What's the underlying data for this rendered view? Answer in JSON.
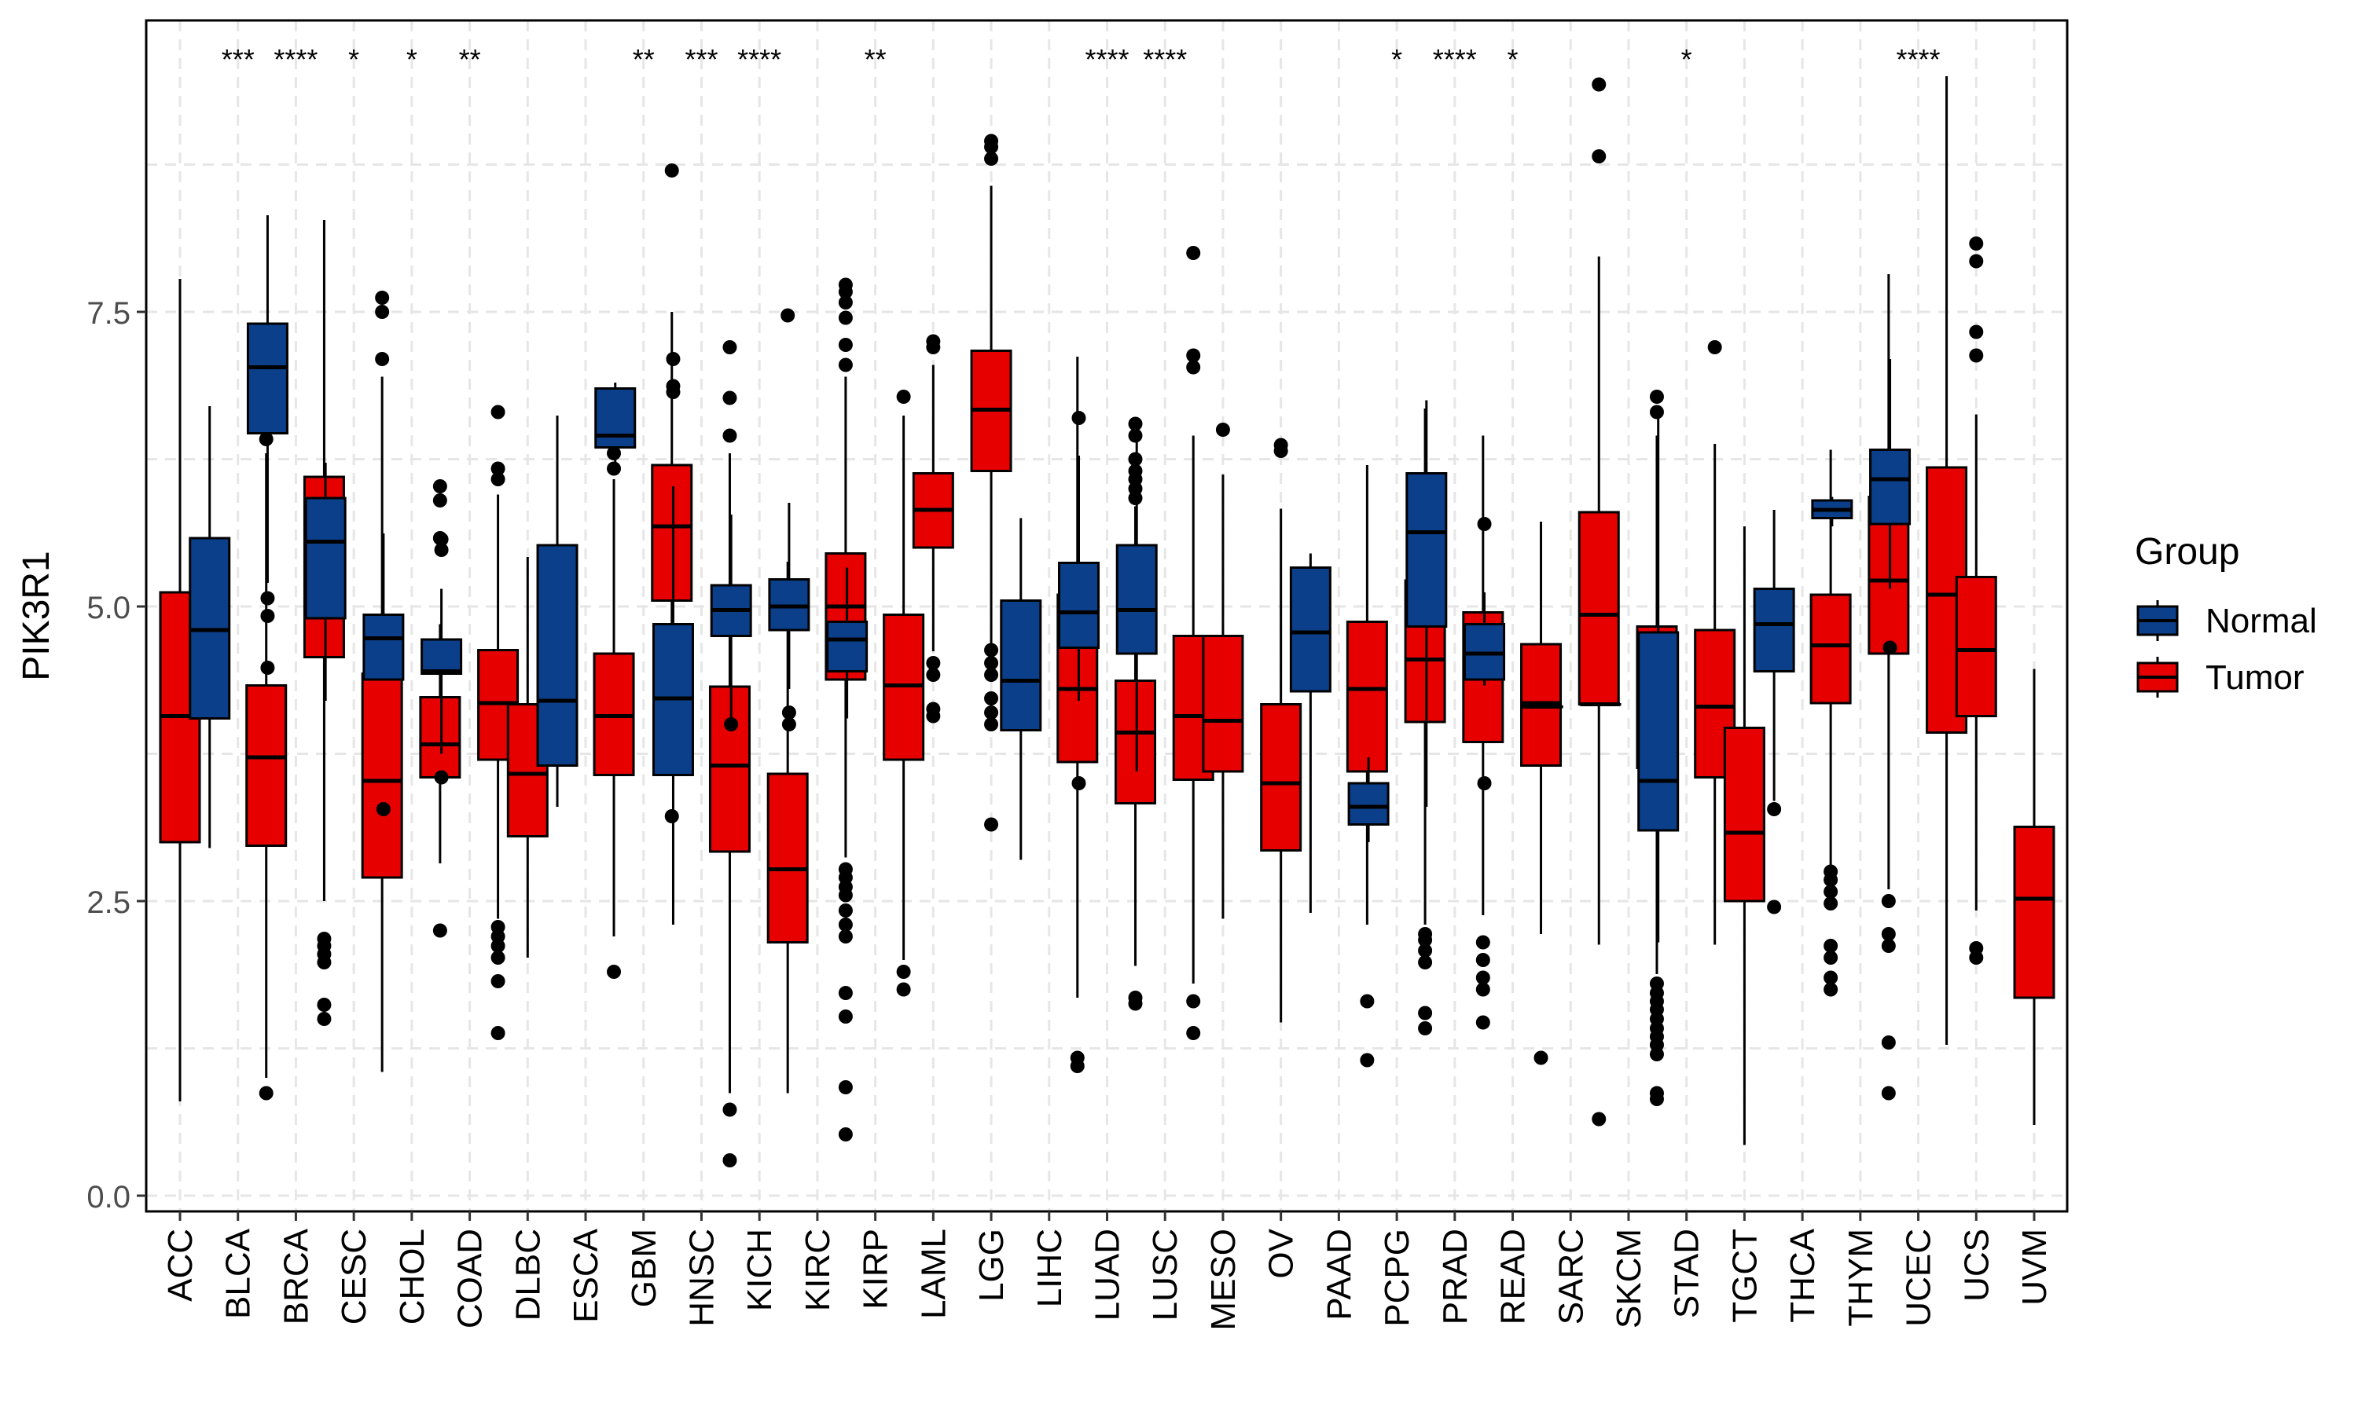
{
  "chart_data": {
    "type": "box",
    "xlabel": "",
    "ylabel": "PIK3R1",
    "ylim": [
      -0.2,
      10.0
    ],
    "yticks": [
      0.0,
      2.5,
      5.0,
      7.5
    ],
    "ytick_labels": [
      "0.0",
      "2.5",
      "5.0",
      "7.5"
    ],
    "grid": true,
    "legend": {
      "title": "Group",
      "placement": "right",
      "entries": [
        {
          "name": "Normal",
          "color": "#0b3f8a"
        },
        {
          "name": "Tumor",
          "color": "#e60000"
        }
      ]
    },
    "colors": {
      "Normal": "#0b3f8a",
      "Tumor": "#e60000"
    },
    "categories": [
      "ACC",
      "BLCA",
      "BRCA",
      "CESC",
      "CHOL",
      "COAD",
      "DLBC",
      "ESCA",
      "GBM",
      "HNSC",
      "KICH",
      "KIRC",
      "KIRP",
      "LAML",
      "LGG",
      "LIHC",
      "LUAD",
      "LUSC",
      "MESO",
      "OV",
      "PAAD",
      "PCPG",
      "PRAD",
      "READ",
      "SARC",
      "SKCM",
      "STAD",
      "TGCT",
      "THCA",
      "THYM",
      "UCEC",
      "UCS",
      "UVM"
    ],
    "significance": [
      "",
      "***",
      "****",
      "*",
      "*",
      "**",
      "",
      "",
      "**",
      "***",
      "****",
      "",
      "**",
      "",
      "",
      "",
      "****",
      "****",
      "",
      "",
      "",
      "*",
      "****",
      "*",
      "",
      "",
      "*",
      "",
      "",
      "",
      "****",
      "",
      ""
    ],
    "boxes": [
      {
        "category": "ACC",
        "group": "Tumor",
        "whisker_low": 0.8,
        "q1": 3.0,
        "median": 4.07,
        "q3": 5.12,
        "whisker_high": 7.78,
        "outliers": []
      },
      {
        "category": "BLCA",
        "group": "Normal",
        "whisker_low": 2.95,
        "q1": 4.05,
        "median": 4.8,
        "q3": 5.58,
        "whisker_high": 6.7,
        "outliers": []
      },
      {
        "category": "BLCA",
        "group": "Tumor",
        "whisker_low": 1.0,
        "q1": 2.97,
        "median": 3.72,
        "q3": 4.33,
        "whisker_high": 6.3,
        "outliers": [
          0.87,
          6.42,
          6.5,
          6.62,
          6.8,
          6.95
        ]
      },
      {
        "category": "BRCA",
        "group": "Normal",
        "whisker_low": 5.2,
        "q1": 6.47,
        "median": 7.03,
        "q3": 7.4,
        "whisker_high": 8.32,
        "outliers": [
          4.48,
          4.92,
          5.07
        ]
      },
      {
        "category": "BRCA",
        "group": "Tumor",
        "whisker_low": 2.5,
        "q1": 4.57,
        "median": 5.37,
        "q3": 6.1,
        "whisker_high": 8.28,
        "outliers": [
          1.5,
          1.62,
          1.98,
          2.05,
          2.12,
          2.18
        ]
      },
      {
        "category": "CESC",
        "group": "Normal",
        "whisker_low": 4.2,
        "q1": 4.9,
        "median": 5.55,
        "q3": 5.92,
        "whisker_high": 6.22,
        "outliers": []
      },
      {
        "category": "CESC",
        "group": "Tumor",
        "whisker_low": 1.05,
        "q1": 2.7,
        "median": 3.52,
        "q3": 4.43,
        "whisker_high": 6.95,
        "outliers": [
          7.1,
          7.5,
          7.62
        ]
      },
      {
        "category": "CHOL",
        "group": "Normal",
        "whisker_low": 4.38,
        "q1": 4.38,
        "median": 4.73,
        "q3": 4.93,
        "whisker_high": 5.62,
        "outliers": [
          3.28
        ]
      },
      {
        "category": "CHOL",
        "group": "Tumor",
        "whisker_low": 2.82,
        "q1": 3.55,
        "median": 3.83,
        "q3": 4.23,
        "whisker_high": 4.85,
        "outliers": [
          2.25,
          5.58,
          5.9,
          6.02
        ]
      },
      {
        "category": "COAD",
        "group": "Normal",
        "whisker_low": 3.75,
        "q1": 4.43,
        "median": 4.45,
        "q3": 4.72,
        "whisker_high": 5.15,
        "outliers": [
          3.55,
          5.48,
          5.57
        ]
      },
      {
        "category": "COAD",
        "group": "Tumor",
        "whisker_low": 2.35,
        "q1": 3.7,
        "median": 4.18,
        "q3": 4.63,
        "whisker_high": 5.95,
        "outliers": [
          1.38,
          1.82,
          2.02,
          2.12,
          2.2,
          2.28,
          6.08,
          6.17,
          6.65
        ]
      },
      {
        "category": "DLBC",
        "group": "Tumor",
        "whisker_low": 2.02,
        "q1": 3.05,
        "median": 3.58,
        "q3": 4.17,
        "whisker_high": 5.42,
        "outliers": []
      },
      {
        "category": "ESCA",
        "group": "Normal",
        "whisker_low": 3.3,
        "q1": 3.65,
        "median": 4.2,
        "q3": 5.52,
        "whisker_high": 6.62,
        "outliers": []
      },
      {
        "category": "ESCA",
        "group": "Tumor",
        "whisker_low": 2.2,
        "q1": 3.57,
        "median": 4.07,
        "q3": 4.6,
        "whisker_high": 6.08,
        "outliers": [
          1.9,
          6.17,
          6.3,
          6.55,
          6.65
        ]
      },
      {
        "category": "GBM",
        "group": "Normal",
        "whisker_low": 6.2,
        "q1": 6.35,
        "median": 6.45,
        "q3": 6.85,
        "whisker_high": 6.9,
        "outliers": []
      },
      {
        "category": "GBM",
        "group": "Tumor",
        "whisker_low": 3.7,
        "q1": 5.05,
        "median": 5.68,
        "q3": 6.2,
        "whisker_high": 7.5,
        "outliers": [
          3.22,
          8.7
        ]
      },
      {
        "category": "HNSC",
        "group": "Normal",
        "whisker_low": 2.3,
        "q1": 3.57,
        "median": 4.22,
        "q3": 4.85,
        "whisker_high": 6.02,
        "outliers": [
          6.82,
          6.87,
          7.1
        ]
      },
      {
        "category": "HNSC",
        "group": "Tumor",
        "whisker_low": 0.87,
        "q1": 2.92,
        "median": 3.65,
        "q3": 4.32,
        "whisker_high": 6.3,
        "outliers": [
          0.3,
          0.73,
          6.45,
          6.77,
          7.2
        ]
      },
      {
        "category": "KICH",
        "group": "Normal",
        "whisker_low": 4.0,
        "q1": 4.75,
        "median": 4.97,
        "q3": 5.18,
        "whisker_high": 5.78,
        "outliers": [
          4.0
        ]
      },
      {
        "category": "KICH",
        "group": "Tumor",
        "whisker_low": 0.87,
        "q1": 2.15,
        "median": 2.77,
        "q3": 3.58,
        "whisker_high": 5.38,
        "outliers": [
          7.47
        ]
      },
      {
        "category": "KIRC",
        "group": "Normal",
        "whisker_low": 4.3,
        "q1": 4.8,
        "median": 5.0,
        "q3": 5.23,
        "whisker_high": 5.88,
        "outliers": [
          4.0,
          4.1
        ]
      },
      {
        "category": "KIRC",
        "group": "Tumor",
        "whisker_low": 2.87,
        "q1": 4.38,
        "median": 5.0,
        "q3": 5.45,
        "whisker_high": 6.95,
        "outliers": [
          0.52,
          0.92,
          1.52,
          1.72,
          2.2,
          2.3,
          2.42,
          2.55,
          2.62,
          2.7,
          2.77,
          7.05,
          7.22,
          7.45,
          7.58,
          7.67,
          7.73
        ]
      },
      {
        "category": "KIRP",
        "group": "Normal",
        "whisker_low": 4.05,
        "q1": 4.45,
        "median": 4.72,
        "q3": 4.87,
        "whisker_high": 5.33,
        "outliers": []
      },
      {
        "category": "KIRP",
        "group": "Tumor",
        "whisker_low": 2.0,
        "q1": 3.7,
        "median": 4.33,
        "q3": 4.93,
        "whisker_high": 6.62,
        "outliers": [
          1.75,
          1.9,
          6.78
        ]
      },
      {
        "category": "LAML",
        "group": "Tumor",
        "whisker_low": 4.62,
        "q1": 5.5,
        "median": 5.82,
        "q3": 6.13,
        "whisker_high": 7.05,
        "outliers": [
          4.07,
          4.13,
          4.42,
          4.52,
          7.2,
          7.25
        ]
      },
      {
        "category": "LGG",
        "group": "Tumor",
        "whisker_low": 4.68,
        "q1": 6.15,
        "median": 6.67,
        "q3": 7.17,
        "whisker_high": 8.57,
        "outliers": [
          3.15,
          4.0,
          4.1,
          4.22,
          4.42,
          4.52,
          4.63,
          8.8,
          8.9,
          8.95
        ]
      },
      {
        "category": "LIHC",
        "group": "Normal",
        "whisker_low": 2.85,
        "q1": 3.95,
        "median": 4.37,
        "q3": 5.05,
        "whisker_high": 5.75,
        "outliers": []
      },
      {
        "category": "LIHC",
        "group": "Tumor",
        "whisker_low": 1.68,
        "q1": 3.68,
        "median": 4.3,
        "q3": 5.1,
        "whisker_high": 7.12,
        "outliers": [
          1.1,
          1.17
        ]
      },
      {
        "category": "LUAD",
        "group": "Normal",
        "whisker_low": 4.2,
        "q1": 4.65,
        "median": 4.95,
        "q3": 5.37,
        "whisker_high": 6.28,
        "outliers": [
          3.5,
          6.6
        ]
      },
      {
        "category": "LUAD",
        "group": "Tumor",
        "whisker_low": 1.95,
        "q1": 3.33,
        "median": 3.93,
        "q3": 4.37,
        "whisker_high": 5.85,
        "outliers": [
          1.63,
          1.68,
          5.92,
          6.0,
          6.08,
          6.15,
          6.25,
          6.45,
          6.55
        ]
      },
      {
        "category": "LUSC",
        "group": "Normal",
        "whisker_low": 3.6,
        "q1": 4.6,
        "median": 4.97,
        "q3": 5.52,
        "whisker_high": 6.4,
        "outliers": []
      },
      {
        "category": "LUSC",
        "group": "Tumor",
        "whisker_low": 1.8,
        "q1": 3.53,
        "median": 4.07,
        "q3": 4.75,
        "whisker_high": 6.45,
        "outliers": [
          1.38,
          1.65,
          7.03,
          7.13,
          8.0
        ]
      },
      {
        "category": "MESO",
        "group": "Tumor",
        "whisker_low": 2.35,
        "q1": 3.6,
        "median": 4.03,
        "q3": 4.75,
        "whisker_high": 6.12,
        "outliers": [
          6.5
        ]
      },
      {
        "category": "OV",
        "group": "Tumor",
        "whisker_low": 1.47,
        "q1": 2.93,
        "median": 3.5,
        "q3": 4.17,
        "whisker_high": 5.83,
        "outliers": [
          6.32,
          6.37
        ]
      },
      {
        "category": "PAAD",
        "group": "Normal",
        "whisker_low": 2.4,
        "q1": 4.28,
        "median": 4.78,
        "q3": 5.33,
        "whisker_high": 5.45,
        "outliers": []
      },
      {
        "category": "PAAD",
        "group": "Tumor",
        "whisker_low": 2.3,
        "q1": 3.6,
        "median": 4.3,
        "q3": 4.87,
        "whisker_high": 6.2,
        "outliers": [
          1.15,
          1.65
        ]
      },
      {
        "category": "PCPG",
        "group": "Normal",
        "whisker_low": 3.0,
        "q1": 3.15,
        "median": 3.3,
        "q3": 3.5,
        "whisker_high": 3.72,
        "outliers": []
      },
      {
        "category": "PCPG",
        "group": "Tumor",
        "whisker_low": 2.3,
        "q1": 4.02,
        "median": 4.55,
        "q3": 5.22,
        "whisker_high": 6.68,
        "outliers": [
          1.42,
          1.55,
          1.98,
          2.08,
          2.17,
          2.22
        ]
      },
      {
        "category": "PRAD",
        "group": "Normal",
        "whisker_low": 3.3,
        "q1": 4.83,
        "median": 5.63,
        "q3": 6.13,
        "whisker_high": 6.75,
        "outliers": []
      },
      {
        "category": "PRAD",
        "group": "Tumor",
        "whisker_low": 2.38,
        "q1": 3.85,
        "median": 4.45,
        "q3": 4.95,
        "whisker_high": 6.45,
        "outliers": [
          1.47,
          1.75,
          1.85,
          2.0,
          2.15
        ]
      },
      {
        "category": "READ",
        "group": "Normal",
        "whisker_low": 4.33,
        "q1": 4.38,
        "median": 4.6,
        "q3": 4.85,
        "whisker_high": 5.12,
        "outliers": [
          3.5,
          5.7
        ]
      },
      {
        "category": "READ",
        "group": "Tumor",
        "whisker_low": 2.22,
        "q1": 3.65,
        "median": 4.18,
        "q3": 4.68,
        "whisker_high": 5.72,
        "outliers": [
          1.17
        ]
      },
      {
        "category": "SARC",
        "group": "Normal",
        "whisker_low": 4.15,
        "q1": 4.15,
        "median": 4.15,
        "q3": 4.15,
        "whisker_high": 4.15,
        "outliers": []
      },
      {
        "category": "SARC",
        "group": "Tumor",
        "whisker_low": 2.13,
        "q1": 4.17,
        "median": 4.93,
        "q3": 5.8,
        "whisker_high": 7.97,
        "outliers": [
          0.65,
          8.82,
          9.43
        ]
      },
      {
        "category": "SKCM",
        "group": "Normal",
        "whisker_low": 4.17,
        "q1": 4.17,
        "median": 4.17,
        "q3": 4.17,
        "whisker_high": 4.17,
        "outliers": []
      },
      {
        "category": "SKCM",
        "group": "Tumor",
        "whisker_low": 1.88,
        "q1": 3.63,
        "median": 4.3,
        "q3": 4.83,
        "whisker_high": 6.45,
        "outliers": [
          0.82,
          0.87,
          1.2,
          1.28,
          1.35,
          1.42,
          1.5,
          1.58,
          1.65,
          1.72,
          1.8,
          6.65,
          6.78
        ]
      },
      {
        "category": "STAD",
        "group": "Normal",
        "whisker_low": 2.15,
        "q1": 3.1,
        "median": 3.52,
        "q3": 4.78,
        "whisker_high": 6.67,
        "outliers": []
      },
      {
        "category": "STAD",
        "group": "Tumor",
        "whisker_low": 2.13,
        "q1": 3.55,
        "median": 4.15,
        "q3": 4.8,
        "whisker_high": 6.38,
        "outliers": [
          7.2
        ]
      },
      {
        "category": "TGCT",
        "group": "Tumor",
        "whisker_low": 0.43,
        "q1": 2.5,
        "median": 3.08,
        "q3": 3.97,
        "whisker_high": 5.68,
        "outliers": []
      },
      {
        "category": "THCA",
        "group": "Normal",
        "whisker_low": 3.35,
        "q1": 4.45,
        "median": 4.85,
        "q3": 5.15,
        "whisker_high": 5.82,
        "outliers": [
          2.45,
          3.28
        ]
      },
      {
        "category": "THCA",
        "group": "Tumor",
        "whisker_low": 2.8,
        "q1": 4.18,
        "median": 4.67,
        "q3": 5.1,
        "whisker_high": 6.33,
        "outliers": [
          1.75,
          1.85,
          2.02,
          2.12,
          2.48,
          2.58,
          2.68,
          2.75
        ]
      },
      {
        "category": "THYM",
        "group": "Normal",
        "whisker_low": 5.68,
        "q1": 5.75,
        "median": 5.82,
        "q3": 5.9,
        "whisker_high": 5.93,
        "outliers": []
      },
      {
        "category": "THYM",
        "group": "Tumor",
        "whisker_low": 2.6,
        "q1": 4.6,
        "median": 5.22,
        "q3": 5.93,
        "whisker_high": 7.82,
        "outliers": [
          0.87,
          1.3,
          2.12,
          2.22,
          2.5
        ]
      },
      {
        "category": "UCEC",
        "group": "Normal",
        "whisker_low": 5.15,
        "q1": 5.7,
        "median": 6.08,
        "q3": 6.33,
        "whisker_high": 7.1,
        "outliers": [
          4.65
        ]
      },
      {
        "category": "UCEC",
        "group": "Tumor",
        "whisker_low": 1.28,
        "q1": 3.93,
        "median": 5.1,
        "q3": 6.18,
        "whisker_high": 9.5,
        "outliers": []
      },
      {
        "category": "UCS",
        "group": "Tumor",
        "whisker_low": 2.42,
        "q1": 4.07,
        "median": 4.63,
        "q3": 5.25,
        "whisker_high": 6.63,
        "outliers": [
          2.02,
          2.1,
          7.13,
          7.33,
          7.93,
          8.08
        ]
      },
      {
        "category": "UVM",
        "group": "Tumor",
        "whisker_low": 0.6,
        "q1": 1.68,
        "median": 2.52,
        "q3": 3.13,
        "whisker_high": 4.47,
        "outliers": []
      }
    ]
  }
}
